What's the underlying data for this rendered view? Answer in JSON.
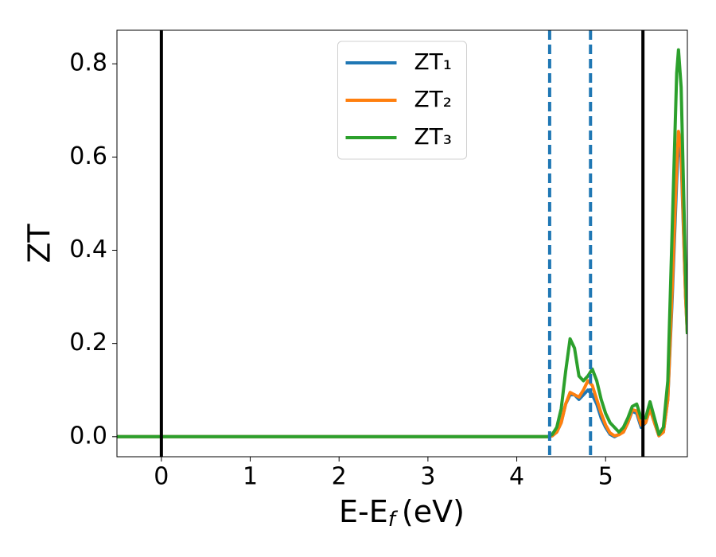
{
  "chart_data": {
    "type": "line",
    "x_label": {
      "main": "E-E",
      "sub": "f",
      "unit": "(eV)"
    },
    "y_label": "ZT",
    "x": [
      -0.5,
      4.35,
      4.4,
      4.45,
      4.5,
      4.55,
      4.6,
      4.65,
      4.7,
      4.75,
      4.8,
      4.85,
      4.9,
      4.95,
      5.0,
      5.05,
      5.1,
      5.15,
      5.2,
      5.25,
      5.3,
      5.35,
      5.4,
      5.45,
      5.5,
      5.55,
      5.6,
      5.65,
      5.7,
      5.75,
      5.8,
      5.82,
      5.85,
      5.9,
      5.92
    ],
    "series": [
      {
        "name": "ZT₁",
        "color": "#1f77b4",
        "values": [
          0,
          0,
          0.002,
          0.01,
          0.03,
          0.07,
          0.09,
          0.09,
          0.08,
          0.09,
          0.1,
          0.09,
          0.07,
          0.04,
          0.02,
          0.005,
          0.0,
          0.005,
          0.01,
          0.03,
          0.055,
          0.05,
          0.02,
          0.03,
          0.06,
          0.03,
          0.002,
          0.01,
          0.08,
          0.3,
          0.55,
          0.63,
          0.6,
          0.3,
          0.22
        ]
      },
      {
        "name": "ZT₂",
        "color": "#ff7f0e",
        "values": [
          0,
          0,
          0.002,
          0.01,
          0.03,
          0.07,
          0.095,
          0.09,
          0.085,
          0.1,
          0.12,
          0.11,
          0.08,
          0.05,
          0.025,
          0.008,
          0.002,
          0.004,
          0.01,
          0.03,
          0.058,
          0.055,
          0.025,
          0.03,
          0.06,
          0.03,
          0.002,
          0.01,
          0.08,
          0.32,
          0.58,
          0.655,
          0.62,
          0.3,
          0.22
        ]
      },
      {
        "name": "ZT₃",
        "color": "#2ca02c",
        "values": [
          0,
          0,
          0.005,
          0.02,
          0.06,
          0.14,
          0.21,
          0.19,
          0.13,
          0.12,
          0.13,
          0.145,
          0.12,
          0.08,
          0.05,
          0.03,
          0.02,
          0.01,
          0.02,
          0.04,
          0.065,
          0.07,
          0.04,
          0.04,
          0.075,
          0.04,
          0.005,
          0.02,
          0.12,
          0.45,
          0.78,
          0.83,
          0.75,
          0.35,
          0.22
        ]
      }
    ],
    "vlines": [
      {
        "x": 0,
        "color": "#000000",
        "style": "solid"
      },
      {
        "x": 5.42,
        "color": "#000000",
        "style": "solid"
      },
      {
        "x": 4.37,
        "color": "#1f77b4",
        "style": "dashed"
      },
      {
        "x": 4.83,
        "color": "#1f77b4",
        "style": "dashed"
      }
    ],
    "xlim": [
      -0.5,
      5.92
    ],
    "ylim": [
      -0.043,
      0.872
    ],
    "xticks": [
      0,
      1,
      2,
      3,
      4,
      5
    ],
    "yticks": [
      {
        "value": 0,
        "label": "0.0"
      },
      {
        "value": 0.2,
        "label": "0.2"
      },
      {
        "value": 0.4,
        "label": "0.4"
      },
      {
        "value": 0.6,
        "label": "0.6"
      },
      {
        "value": 0.8,
        "label": "0.8"
      }
    ],
    "legend": "upper center"
  }
}
